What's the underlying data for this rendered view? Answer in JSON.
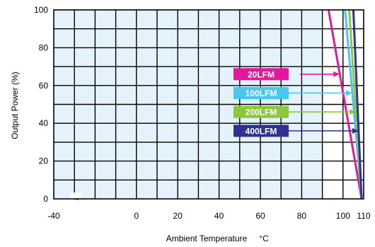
{
  "chart_data": {
    "type": "line",
    "title": "",
    "xlabel": "Ambient Temperature",
    "xlabel_unit": "°C",
    "ylabel": "Output Power  (%)",
    "xlim": [
      -40,
      110
    ],
    "ylim": [
      0,
      100
    ],
    "x_ticks": [
      "-40",
      "0",
      "20",
      "40",
      "60",
      "80",
      "100",
      "110"
    ],
    "x_tick_values": [
      -40,
      0,
      20,
      40,
      60,
      80,
      100,
      110
    ],
    "y_ticks": [
      "0",
      "20",
      "40",
      "60",
      "80",
      "100"
    ],
    "y_tick_values": [
      0,
      20,
      40,
      60,
      80,
      100
    ],
    "shaded_region": {
      "x_from": -40,
      "x_to": 90,
      "color": "#e3f2fb"
    },
    "grid": true,
    "axis_break_mark": "~",
    "series": [
      {
        "name": "20LFM",
        "color": "#e2189b",
        "label_bg": "#e2189b",
        "points": [
          [
            93,
            100
          ],
          [
            109,
            0
          ]
        ],
        "arrow_y": 66
      },
      {
        "name": "100LFM",
        "color": "#48c7f0",
        "label_bg": "#48c7f0",
        "points": [
          [
            101,
            100
          ],
          [
            109,
            0
          ]
        ],
        "arrow_y": 56
      },
      {
        "name": "200LFM",
        "color": "#8cc63f",
        "label_bg": "#8cc63f",
        "points": [
          [
            103,
            100
          ],
          [
            109,
            0
          ]
        ],
        "arrow_y": 46
      },
      {
        "name": "400LFM",
        "color": "#2e3192",
        "label_bg": "#2e3192",
        "points": [
          [
            105,
            100
          ],
          [
            109,
            0
          ]
        ],
        "arrow_y": 36
      }
    ]
  }
}
